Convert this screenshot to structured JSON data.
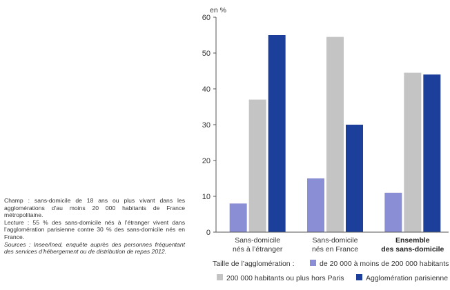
{
  "notes": {
    "champ": "Champ : sans-domicile de 18 ans ou plus vivant dans les agglomérations d’au moins 20 000 habitants de France métropolitaine.",
    "lecture": "Lecture : 55 % des sans-domicile nés à l’étranger vivent dans l’agglomération parisienne contre 30 % des sans-domicile nés en France.",
    "sources": "Sources : Insee/Ined, enquête auprès des personnes fréquentant des services d’hébergement ou de distribution de repas 2012."
  },
  "chart_data": {
    "type": "bar",
    "ylabel": "en %",
    "ylim": [
      0,
      60
    ],
    "yticks": [
      "0",
      "10",
      "20",
      "30",
      "40",
      "50",
      "60"
    ],
    "categories": [
      {
        "lines": [
          "Sans-domicile",
          "nés à l’étranger"
        ],
        "bold": false
      },
      {
        "lines": [
          "Sans-domicile",
          "nés en France"
        ],
        "bold": false
      },
      {
        "lines": [
          "Ensemble",
          "des sans-domicile"
        ],
        "bold": true
      }
    ],
    "series": [
      {
        "name": "de 20 000 à moins de 200 000 habitants",
        "color": "#8a8ed4",
        "values": [
          8,
          15,
          11
        ]
      },
      {
        "name": "200 000 habitants ou plus hors Paris",
        "color": "#c4c4c4",
        "values": [
          37,
          54.5,
          44.5
        ]
      },
      {
        "name": "Agglomération parisienne",
        "color": "#1c3f9c",
        "values": [
          55,
          30,
          44
        ]
      }
    ],
    "legend_title": "Taille de l’agglomération :",
    "legend_placement": "bottom",
    "grid": false
  }
}
